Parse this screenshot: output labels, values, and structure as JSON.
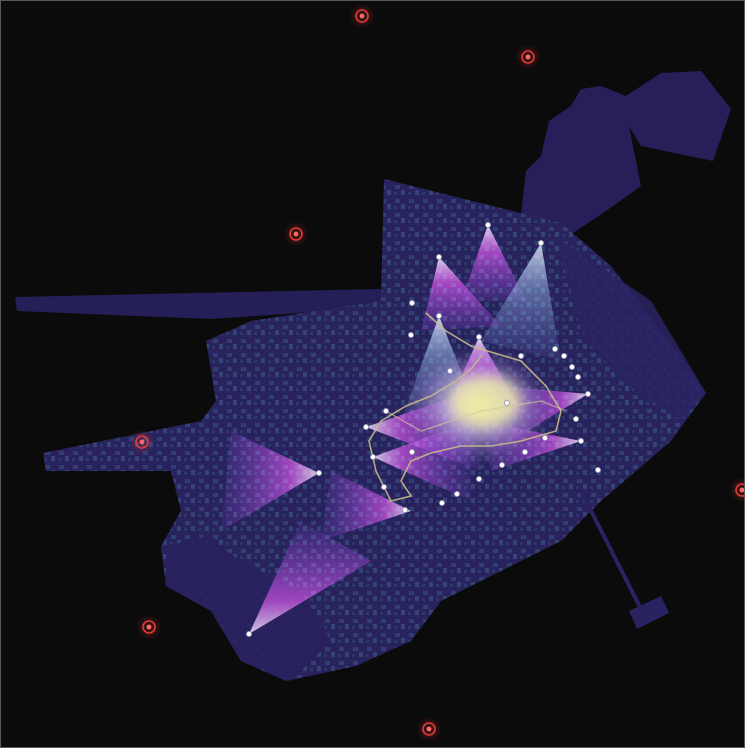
{
  "view": {
    "background": "#0b0b0b",
    "frame_color": "#5a5a5a"
  },
  "colors": {
    "footprint": "#2b2466",
    "footprint_dark": "#1e1a4d",
    "imagery_tint": "#3a5f8f",
    "camera_fov_core": "#c63ad6",
    "camera_fov_mid": "#8a2bd8",
    "camera_fov_apex": "#d7d4e8",
    "overlap_hot": "#f4f3a0",
    "overlap_warm": "#c9b6e8",
    "sensor_node": "#ffffff",
    "path": "#c8b98a",
    "outlier_marker": "#e53935"
  },
  "legend_semantics": {
    "outlier_marker_icon": "target-circle-icon",
    "sensor_node_icon": "dot-icon"
  }
}
